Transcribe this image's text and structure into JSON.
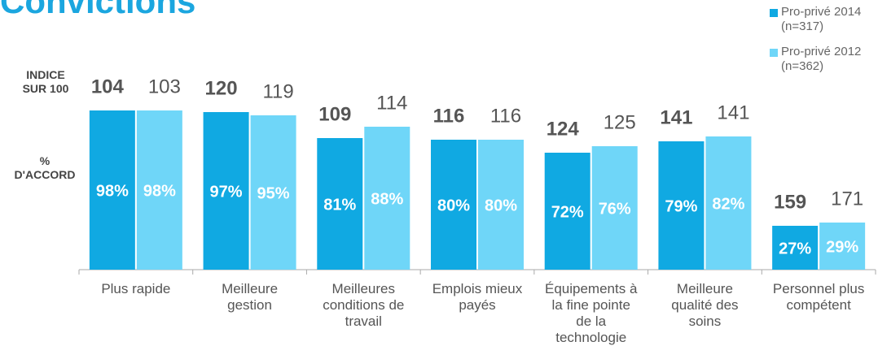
{
  "chart_data": {
    "type": "bar",
    "title": "Convictions",
    "left_labels": [
      "INDICE SUR 100",
      "% D'ACCORD"
    ],
    "categories": [
      "Plus rapide",
      "Meilleure gestion",
      "Meilleures conditions de travail",
      "Emplois mieux payés",
      "Équipements à la fine pointe de la technologie",
      "Meilleure qualité des soins",
      "Personnel plus compétent"
    ],
    "ylim": [
      0,
      100
    ],
    "series": [
      {
        "name": "Pro-privé 2014 (n=317)",
        "color": "#10a9e2",
        "values": [
          98,
          97,
          81,
          80,
          72,
          79,
          27
        ],
        "value_labels": [
          "98%",
          "97%",
          "81%",
          "80%",
          "72%",
          "79%",
          "27%"
        ],
        "indices": [
          104,
          120,
          109,
          116,
          124,
          141,
          159
        ]
      },
      {
        "name": "Pro-privé 2012 (n=362)",
        "color": "#6fd6f8",
        "values": [
          98,
          95,
          88,
          80,
          76,
          82,
          29
        ],
        "value_labels": [
          "98%",
          "95%",
          "88%",
          "80%",
          "76%",
          "82%",
          "29%"
        ],
        "indices": [
          103,
          119,
          114,
          116,
          125,
          141,
          171
        ]
      }
    ]
  }
}
